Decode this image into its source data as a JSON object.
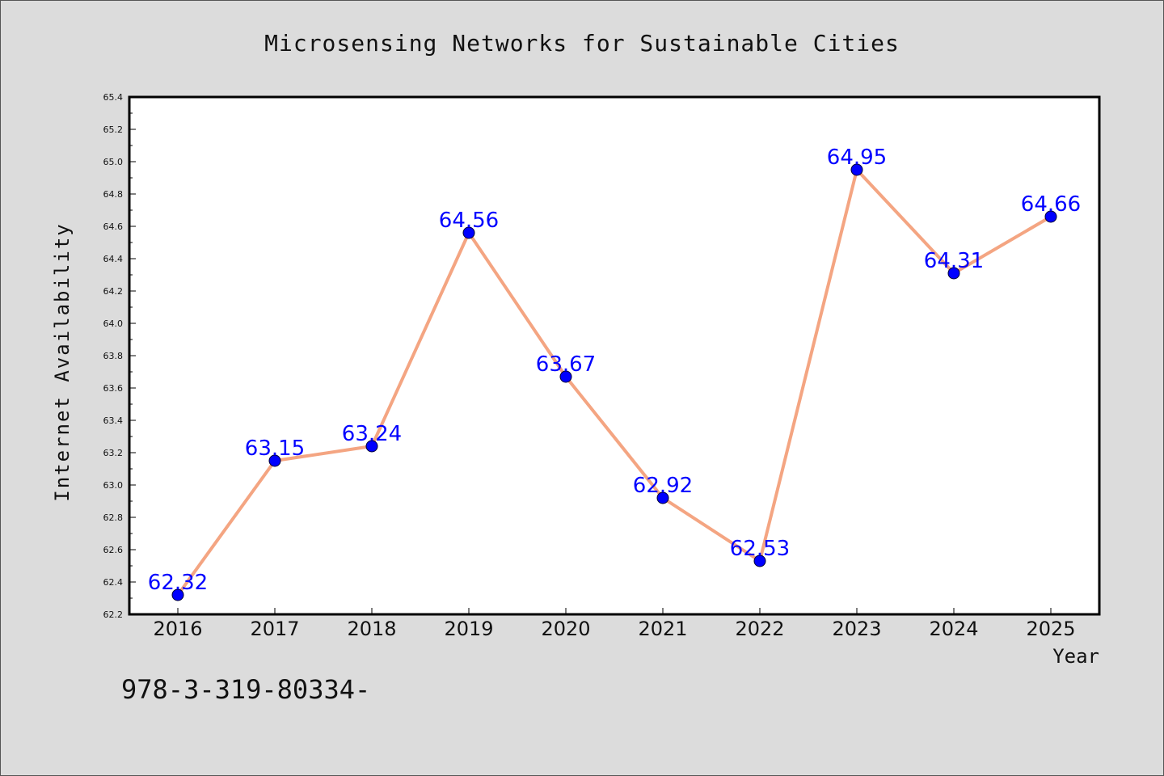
{
  "chart_data": {
    "type": "line",
    "title": "Microsensing Networks for Sustainable Cities",
    "xlabel": "Year",
    "ylabel": "Internet Availability",
    "categories": [
      "2016",
      "2017",
      "2018",
      "2019",
      "2020",
      "2021",
      "2022",
      "2023",
      "2024",
      "2025"
    ],
    "series": [
      {
        "values": [
          62.32,
          63.15,
          63.24,
          64.56,
          63.67,
          62.92,
          62.53,
          64.95,
          64.31,
          64.66
        ],
        "data_labels": [
          "62.32",
          "63.15",
          "63.24",
          "64.56",
          "63.67",
          "62.92",
          "62.53",
          "64.95",
          "64.31",
          "64.66"
        ],
        "line_color": "#f4a582",
        "marker_color": "#0000ff"
      }
    ],
    "ylim": [
      62.2,
      65.4
    ],
    "yticks": [
      "62.2",
      "62.4",
      "62.6",
      "62.8",
      "63.0",
      "63.2",
      "63.4",
      "63.6",
      "63.8",
      "64.0",
      "64.2",
      "64.4",
      "64.6",
      "64.8",
      "65.0",
      "65.2",
      "65.4"
    ],
    "grid": false,
    "legend": "none"
  },
  "footer_text": "978-3-319-80334-",
  "colors": {
    "background": "#dcdcdc",
    "plot_background": "#ffffff",
    "label_color": "#0000ff",
    "text": "#111111"
  }
}
